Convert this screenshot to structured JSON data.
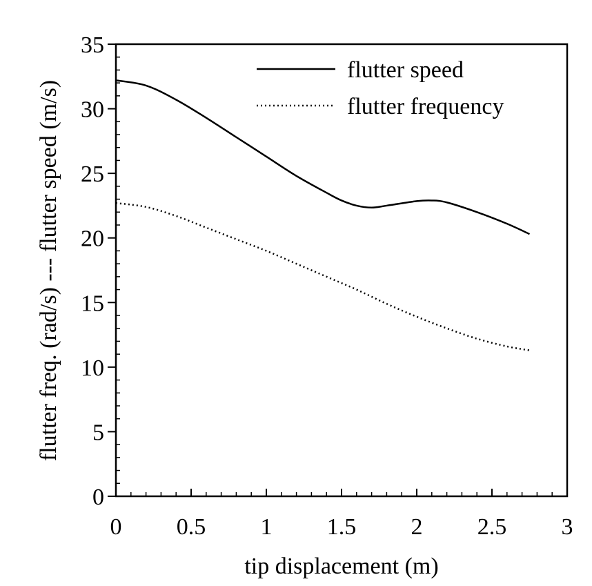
{
  "chart_data": {
    "type": "line",
    "xlabel": "tip displacement (m)",
    "ylabel": "flutter freq. (rad/s) --- flutter speed (m/s)",
    "xlim": [
      0,
      3
    ],
    "ylim": [
      0,
      35
    ],
    "xticks": [
      0,
      0.5,
      1,
      1.5,
      2,
      2.5,
      3
    ],
    "xtick_labels": [
      "0",
      "0.5",
      "1",
      "1.5",
      "2",
      "2.5",
      "3"
    ],
    "yticks": [
      0,
      5,
      10,
      15,
      20,
      25,
      30,
      35
    ],
    "ytick_labels": [
      "0",
      "5",
      "10",
      "15",
      "20",
      "25",
      "30",
      "35"
    ],
    "grid": false,
    "legend_position": "top-right",
    "series": [
      {
        "name": "flutter speed",
        "style": "solid",
        "color": "#000000",
        "x": [
          0,
          0.2,
          0.4,
          0.6,
          0.8,
          1.0,
          1.2,
          1.4,
          1.5,
          1.6,
          1.7,
          1.8,
          2.0,
          2.1,
          2.2,
          2.4,
          2.6,
          2.75
        ],
        "y": [
          32.2,
          31.8,
          30.7,
          29.3,
          27.8,
          26.3,
          24.8,
          23.5,
          22.9,
          22.5,
          22.35,
          22.5,
          22.85,
          22.9,
          22.75,
          22.0,
          21.1,
          20.3
        ]
      },
      {
        "name": "flutter frequency",
        "style": "dotted",
        "color": "#000000",
        "x": [
          0,
          0.2,
          0.4,
          0.6,
          0.8,
          1.0,
          1.2,
          1.4,
          1.6,
          1.8,
          2.0,
          2.2,
          2.4,
          2.6,
          2.75
        ],
        "y": [
          22.7,
          22.4,
          21.7,
          20.8,
          19.9,
          19.0,
          18.0,
          17.0,
          16.0,
          14.9,
          13.9,
          13.0,
          12.2,
          11.6,
          11.3
        ]
      }
    ]
  }
}
